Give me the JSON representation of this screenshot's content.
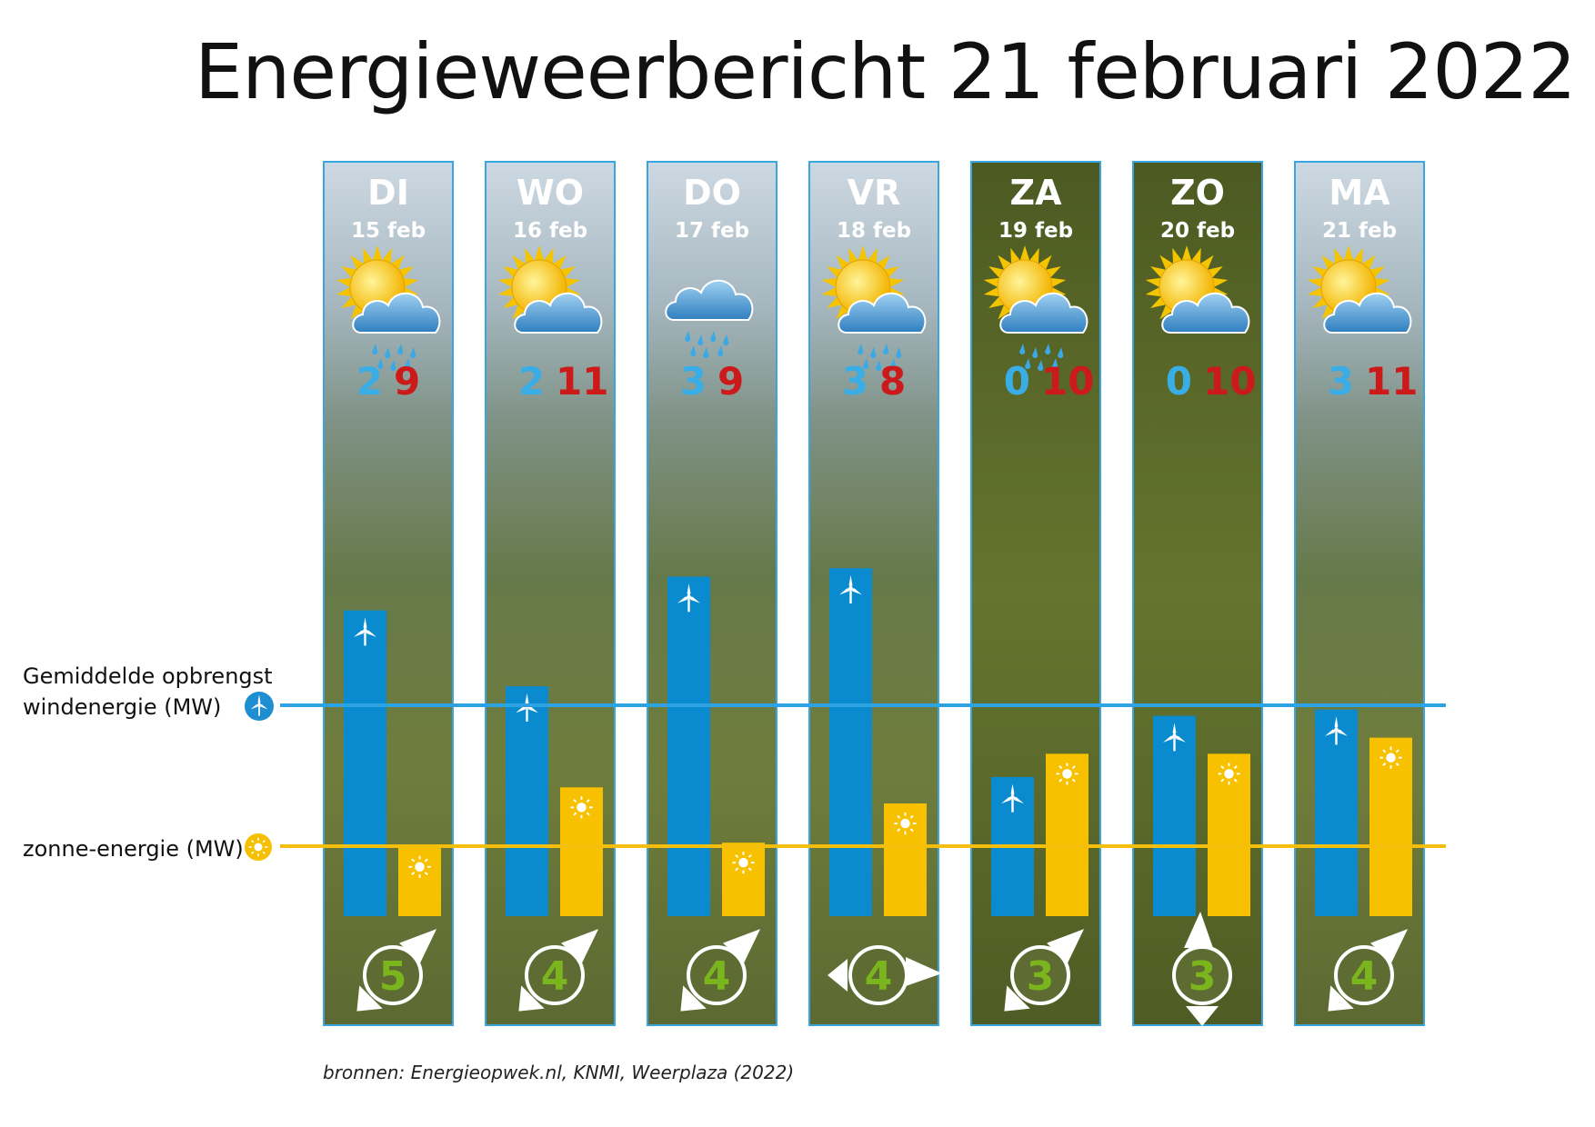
{
  "title": "Energieweerbericht 21 februari 2022",
  "legend": {
    "wind_line1": "Gemiddelde opbrengst",
    "wind_line2": "windenergie (MW)",
    "solar": "zonne-energie (MW)"
  },
  "source": "bronnen: Energieopwek.nl, KNMI, Weerplaza (2022)",
  "colors": {
    "wind": "#0a8bd0",
    "solar": "#f8c100",
    "temp_min": "#39aee6",
    "temp_max": "#cc1a1a",
    "wind_force": "#7ab51d",
    "panel_border": "#3aa6e0"
  },
  "chart_data": {
    "type": "bar",
    "categories": [
      "DI",
      "WO",
      "DO",
      "VR",
      "ZA",
      "ZO",
      "MA"
    ],
    "dates": [
      "15 feb",
      "16 feb",
      "17 feb",
      "18 feb",
      "19 feb",
      "20 feb",
      "21 feb"
    ],
    "series": [
      {
        "name": "windenergie (MW)",
        "relative_to_average": [
          1.45,
          1.09,
          1.61,
          1.65,
          0.66,
          0.95,
          0.98
        ]
      },
      {
        "name": "zonne-energie (MW)",
        "relative_to_average": [
          0.99,
          1.84,
          1.05,
          1.61,
          2.32,
          2.32,
          2.55
        ]
      }
    ],
    "reference_lines": [
      "Gemiddelde opbrengst windenergie (MW)",
      "zonne-energie (MW)"
    ],
    "temp_min": [
      2,
      2,
      3,
      3,
      0,
      0,
      3
    ],
    "temp_max": [
      9,
      11,
      9,
      8,
      10,
      10,
      11
    ],
    "weather_icons": [
      "sun-cloud-rain-icon",
      "sun-cloud-icon",
      "cloud-rain-icon",
      "sun-cloud-rain-icon",
      "sun-cloud-rain-icon",
      "sun-cloud-icon",
      "sun-cloud-icon"
    ],
    "wind_force": [
      5,
      4,
      4,
      4,
      3,
      3,
      4
    ],
    "wind_direction": [
      "ZW",
      "ZW",
      "ZW",
      "W",
      "ZW",
      "Z",
      "ZW"
    ],
    "weekend_days": [
      "ZA",
      "ZO"
    ]
  }
}
